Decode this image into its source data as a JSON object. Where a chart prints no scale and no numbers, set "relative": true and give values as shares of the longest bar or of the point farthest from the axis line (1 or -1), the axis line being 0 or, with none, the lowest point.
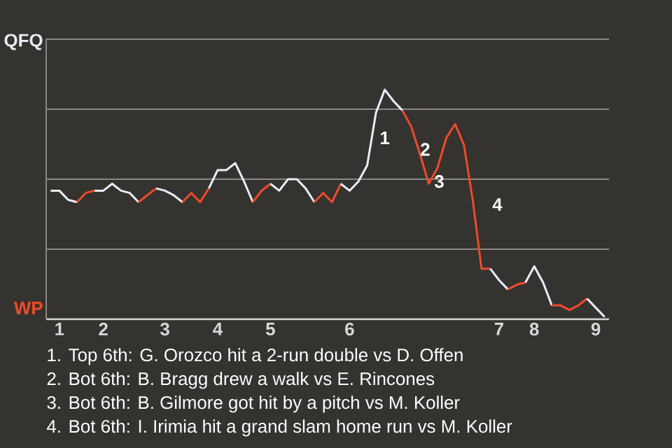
{
  "chart_data": {
    "type": "line",
    "relative": true,
    "categories": [
      null,
      "1",
      null,
      null,
      null,
      null,
      "2",
      null,
      null,
      null,
      null,
      null,
      null,
      "3",
      null,
      null,
      null,
      null,
      null,
      "4",
      null,
      null,
      null,
      null,
      null,
      "5",
      null,
      null,
      null,
      null,
      null,
      null,
      null,
      null,
      "6",
      null,
      null,
      null,
      null,
      null,
      null,
      null,
      null,
      null,
      null,
      null,
      null,
      null,
      null,
      null,
      null,
      "7",
      null,
      null,
      null,
      "8",
      null,
      null,
      null,
      null,
      null,
      null,
      "9",
      null
    ],
    "series": [
      {
        "color": "#e8eef4",
        "values": [
          0.56,
          0.56,
          0.52,
          0.51,
          null,
          null,
          null,
          null,
          null,
          null,
          null,
          null,
          null,
          null,
          null,
          null,
          null,
          null,
          null,
          null,
          null,
          null,
          null,
          null,
          null,
          null,
          null,
          null,
          null,
          null,
          null,
          null,
          null,
          null,
          null,
          null,
          null,
          null,
          null,
          null,
          null,
          null,
          null,
          null,
          null,
          null,
          null,
          null,
          null,
          null,
          null,
          null,
          null,
          null,
          null,
          null,
          null,
          null,
          null,
          null,
          null,
          null,
          null,
          null
        ]
      },
      {
        "color": "#f04a25",
        "values": [
          null,
          null,
          null,
          0.51,
          0.55,
          0.56,
          null,
          null,
          null,
          null,
          null,
          null,
          null,
          null,
          null,
          null,
          null,
          null,
          null,
          null,
          null,
          null,
          null,
          null,
          null,
          null,
          null,
          null,
          null,
          null,
          null,
          null,
          null,
          null,
          null,
          null,
          null,
          null,
          null,
          null,
          null,
          null,
          null,
          null,
          null,
          null,
          null,
          null,
          null,
          null,
          null,
          null,
          null,
          null,
          null,
          null,
          null,
          null,
          null,
          null,
          null,
          null,
          null,
          null
        ]
      },
      {
        "color": "#e8eef5",
        "values": [
          null,
          null,
          null,
          null,
          null,
          0.56,
          0.56,
          0.59,
          0.56,
          0.55,
          0.51,
          null,
          null,
          null,
          null,
          null,
          null,
          null,
          null,
          null,
          null,
          null,
          null,
          null,
          null,
          null,
          null,
          null,
          null,
          null,
          null,
          null,
          null,
          null,
          null,
          null,
          null,
          null,
          null,
          null,
          null,
          null,
          null,
          null,
          null,
          null,
          null,
          null,
          null,
          null,
          null,
          null,
          null,
          null,
          null,
          null,
          null,
          null,
          null,
          null,
          null,
          null,
          null,
          null
        ]
      },
      {
        "color": "#f04a26",
        "values": [
          null,
          null,
          null,
          null,
          null,
          null,
          null,
          null,
          null,
          null,
          0.51,
          0.54,
          0.57,
          null,
          null,
          null,
          null,
          null,
          null,
          null,
          null,
          null,
          null,
          null,
          null,
          null,
          null,
          null,
          null,
          null,
          null,
          null,
          null,
          null,
          null,
          null,
          null,
          null,
          null,
          null,
          null,
          null,
          null,
          null,
          null,
          null,
          null,
          null,
          null,
          null,
          null,
          null,
          null,
          null,
          null,
          null,
          null,
          null,
          null,
          null,
          null,
          null,
          null,
          null
        ]
      },
      {
        "color": "#e8eef6",
        "values": [
          null,
          null,
          null,
          null,
          null,
          null,
          null,
          null,
          null,
          null,
          null,
          null,
          0.57,
          0.56,
          0.54,
          0.51,
          null,
          null,
          null,
          null,
          null,
          null,
          null,
          null,
          null,
          null,
          null,
          null,
          null,
          null,
          null,
          null,
          null,
          null,
          null,
          null,
          null,
          null,
          null,
          null,
          null,
          null,
          null,
          null,
          null,
          null,
          null,
          null,
          null,
          null,
          null,
          null,
          null,
          null,
          null,
          null,
          null,
          null,
          null,
          null,
          null,
          null,
          null,
          null
        ]
      },
      {
        "color": "#f04a27",
        "values": [
          null,
          null,
          null,
          null,
          null,
          null,
          null,
          null,
          null,
          null,
          null,
          null,
          null,
          null,
          null,
          0.51,
          0.55,
          0.51,
          0.57,
          null,
          null,
          null,
          null,
          null,
          null,
          null,
          null,
          null,
          null,
          null,
          null,
          null,
          null,
          null,
          null,
          null,
          null,
          null,
          null,
          null,
          null,
          null,
          null,
          null,
          null,
          null,
          null,
          null,
          null,
          null,
          null,
          null,
          null,
          null,
          null,
          null,
          null,
          null,
          null,
          null,
          null,
          null,
          null,
          null
        ]
      },
      {
        "color": "#e8eef7",
        "values": [
          null,
          null,
          null,
          null,
          null,
          null,
          null,
          null,
          null,
          null,
          null,
          null,
          null,
          null,
          null,
          null,
          null,
          null,
          0.57,
          0.65,
          0.65,
          0.68,
          0.6,
          0.51,
          null,
          null,
          null,
          null,
          null,
          null,
          null,
          null,
          null,
          null,
          null,
          null,
          null,
          null,
          null,
          null,
          null,
          null,
          null,
          null,
          null,
          null,
          null,
          null,
          null,
          null,
          null,
          null,
          null,
          null,
          null,
          null,
          null,
          null,
          null,
          null,
          null,
          null,
          null,
          null
        ]
      },
      {
        "color": "#f04a28",
        "values": [
          null,
          null,
          null,
          null,
          null,
          null,
          null,
          null,
          null,
          null,
          null,
          null,
          null,
          null,
          null,
          null,
          null,
          null,
          null,
          null,
          null,
          null,
          null,
          0.51,
          0.56,
          0.59,
          null,
          null,
          null,
          null,
          null,
          null,
          null,
          null,
          null,
          null,
          null,
          null,
          null,
          null,
          null,
          null,
          null,
          null,
          null,
          null,
          null,
          null,
          null,
          null,
          null,
          null,
          null,
          null,
          null,
          null,
          null,
          null,
          null,
          null,
          null,
          null,
          null,
          null
        ]
      },
      {
        "color": "#e8eef8",
        "values": [
          null,
          null,
          null,
          null,
          null,
          null,
          null,
          null,
          null,
          null,
          null,
          null,
          null,
          null,
          null,
          null,
          null,
          null,
          null,
          null,
          null,
          null,
          null,
          null,
          null,
          0.59,
          0.56,
          0.61,
          0.61,
          0.57,
          0.51,
          null,
          null,
          null,
          null,
          null,
          null,
          null,
          null,
          null,
          null,
          null,
          null,
          null,
          null,
          null,
          null,
          null,
          null,
          null,
          null,
          null,
          null,
          null,
          null,
          null,
          null,
          null,
          null,
          null,
          null,
          null,
          null,
          null
        ]
      },
      {
        "color": "#f04a29",
        "values": [
          null,
          null,
          null,
          null,
          null,
          null,
          null,
          null,
          null,
          null,
          null,
          null,
          null,
          null,
          null,
          null,
          null,
          null,
          null,
          null,
          null,
          null,
          null,
          null,
          null,
          null,
          null,
          null,
          null,
          null,
          0.51,
          0.55,
          0.51,
          0.59,
          null,
          null,
          null,
          null,
          null,
          null,
          null,
          null,
          null,
          null,
          null,
          null,
          null,
          null,
          null,
          null,
          null,
          null,
          null,
          null,
          null,
          null,
          null,
          null,
          null,
          null,
          null,
          null,
          null,
          null
        ]
      },
      {
        "color": "#e8eef9",
        "values": [
          null,
          null,
          null,
          null,
          null,
          null,
          null,
          null,
          null,
          null,
          null,
          null,
          null,
          null,
          null,
          null,
          null,
          null,
          null,
          null,
          null,
          null,
          null,
          null,
          null,
          null,
          null,
          null,
          null,
          null,
          null,
          null,
          null,
          0.59,
          0.56,
          0.6,
          0.67,
          0.9,
          1,
          0.95,
          0.91,
          null,
          null,
          null,
          null,
          null,
          null,
          null,
          null,
          null,
          null,
          null,
          null,
          null,
          null,
          null,
          null,
          null,
          null,
          null,
          null,
          null,
          null,
          null
        ]
      },
      {
        "color": "#f04a2a",
        "values": [
          null,
          null,
          null,
          null,
          null,
          null,
          null,
          null,
          null,
          null,
          null,
          null,
          null,
          null,
          null,
          null,
          null,
          null,
          null,
          null,
          null,
          null,
          null,
          null,
          null,
          null,
          null,
          null,
          null,
          null,
          null,
          null,
          null,
          null,
          null,
          null,
          null,
          null,
          null,
          null,
          0.91,
          0.84,
          0.72,
          0.59,
          0.66,
          0.79,
          0.85,
          0.76,
          0.52,
          0.22,
          0.22,
          null,
          null,
          null,
          null,
          null,
          null,
          null,
          null,
          null,
          null,
          null,
          null,
          null
        ]
      },
      {
        "color": "#e8eefa",
        "values": [
          null,
          null,
          null,
          null,
          null,
          null,
          null,
          null,
          null,
          null,
          null,
          null,
          null,
          null,
          null,
          null,
          null,
          null,
          null,
          null,
          null,
          null,
          null,
          null,
          null,
          null,
          null,
          null,
          null,
          null,
          null,
          null,
          null,
          null,
          null,
          null,
          null,
          null,
          null,
          null,
          null,
          null,
          null,
          null,
          null,
          null,
          null,
          null,
          null,
          null,
          0.22,
          0.17,
          0.13,
          null,
          null,
          null,
          null,
          null,
          null,
          null,
          null,
          null,
          null,
          null
        ]
      },
      {
        "color": "#f04a2b",
        "values": [
          null,
          null,
          null,
          null,
          null,
          null,
          null,
          null,
          null,
          null,
          null,
          null,
          null,
          null,
          null,
          null,
          null,
          null,
          null,
          null,
          null,
          null,
          null,
          null,
          null,
          null,
          null,
          null,
          null,
          null,
          null,
          null,
          null,
          null,
          null,
          null,
          null,
          null,
          null,
          null,
          null,
          null,
          null,
          null,
          null,
          null,
          null,
          null,
          null,
          null,
          null,
          null,
          0.13,
          0.15,
          0.16,
          null,
          null,
          null,
          null,
          null,
          null,
          null,
          null,
          null
        ]
      },
      {
        "color": "#e8eefb",
        "values": [
          null,
          null,
          null,
          null,
          null,
          null,
          null,
          null,
          null,
          null,
          null,
          null,
          null,
          null,
          null,
          null,
          null,
          null,
          null,
          null,
          null,
          null,
          null,
          null,
          null,
          null,
          null,
          null,
          null,
          null,
          null,
          null,
          null,
          null,
          null,
          null,
          null,
          null,
          null,
          null,
          null,
          null,
          null,
          null,
          null,
          null,
          null,
          null,
          null,
          null,
          null,
          null,
          null,
          null,
          0.16,
          0.23,
          0.16,
          0.06,
          null,
          null,
          null,
          null,
          null,
          null
        ]
      },
      {
        "color": "#f04a2c",
        "values": [
          null,
          null,
          null,
          null,
          null,
          null,
          null,
          null,
          null,
          null,
          null,
          null,
          null,
          null,
          null,
          null,
          null,
          null,
          null,
          null,
          null,
          null,
          null,
          null,
          null,
          null,
          null,
          null,
          null,
          null,
          null,
          null,
          null,
          null,
          null,
          null,
          null,
          null,
          null,
          null,
          null,
          null,
          null,
          null,
          null,
          null,
          null,
          null,
          null,
          null,
          null,
          null,
          null,
          null,
          null,
          null,
          null,
          0.06,
          0.06,
          0.04,
          0.06,
          0.09,
          null,
          null
        ]
      },
      {
        "color": "#e8eefc",
        "values": [
          null,
          null,
          null,
          null,
          null,
          null,
          null,
          null,
          null,
          null,
          null,
          null,
          null,
          null,
          null,
          null,
          null,
          null,
          null,
          null,
          null,
          null,
          null,
          null,
          null,
          null,
          null,
          null,
          null,
          null,
          null,
          null,
          null,
          null,
          null,
          null,
          null,
          null,
          null,
          null,
          null,
          null,
          null,
          null,
          null,
          null,
          null,
          null,
          null,
          null,
          null,
          null,
          null,
          null,
          null,
          null,
          null,
          null,
          null,
          null,
          null,
          0.09,
          0.05,
          0.01
        ]
      }
    ],
    "grid": "y",
    "annotations": [
      "QFQ",
      "WP",
      "1",
      "2",
      "3",
      "4",
      "1. Top 6th: G. Orozco hit a 2-run double vs D. Offen",
      "2. Bot 6th: B. Bragg drew a walk vs E. Rincones",
      "3. Bot 6th: B. Gilmore got hit by a pitch vs M. Koller",
      "4. Bot 6th: I. Irimia hit a grand slam home run vs M. Koller"
    ]
  }
}
